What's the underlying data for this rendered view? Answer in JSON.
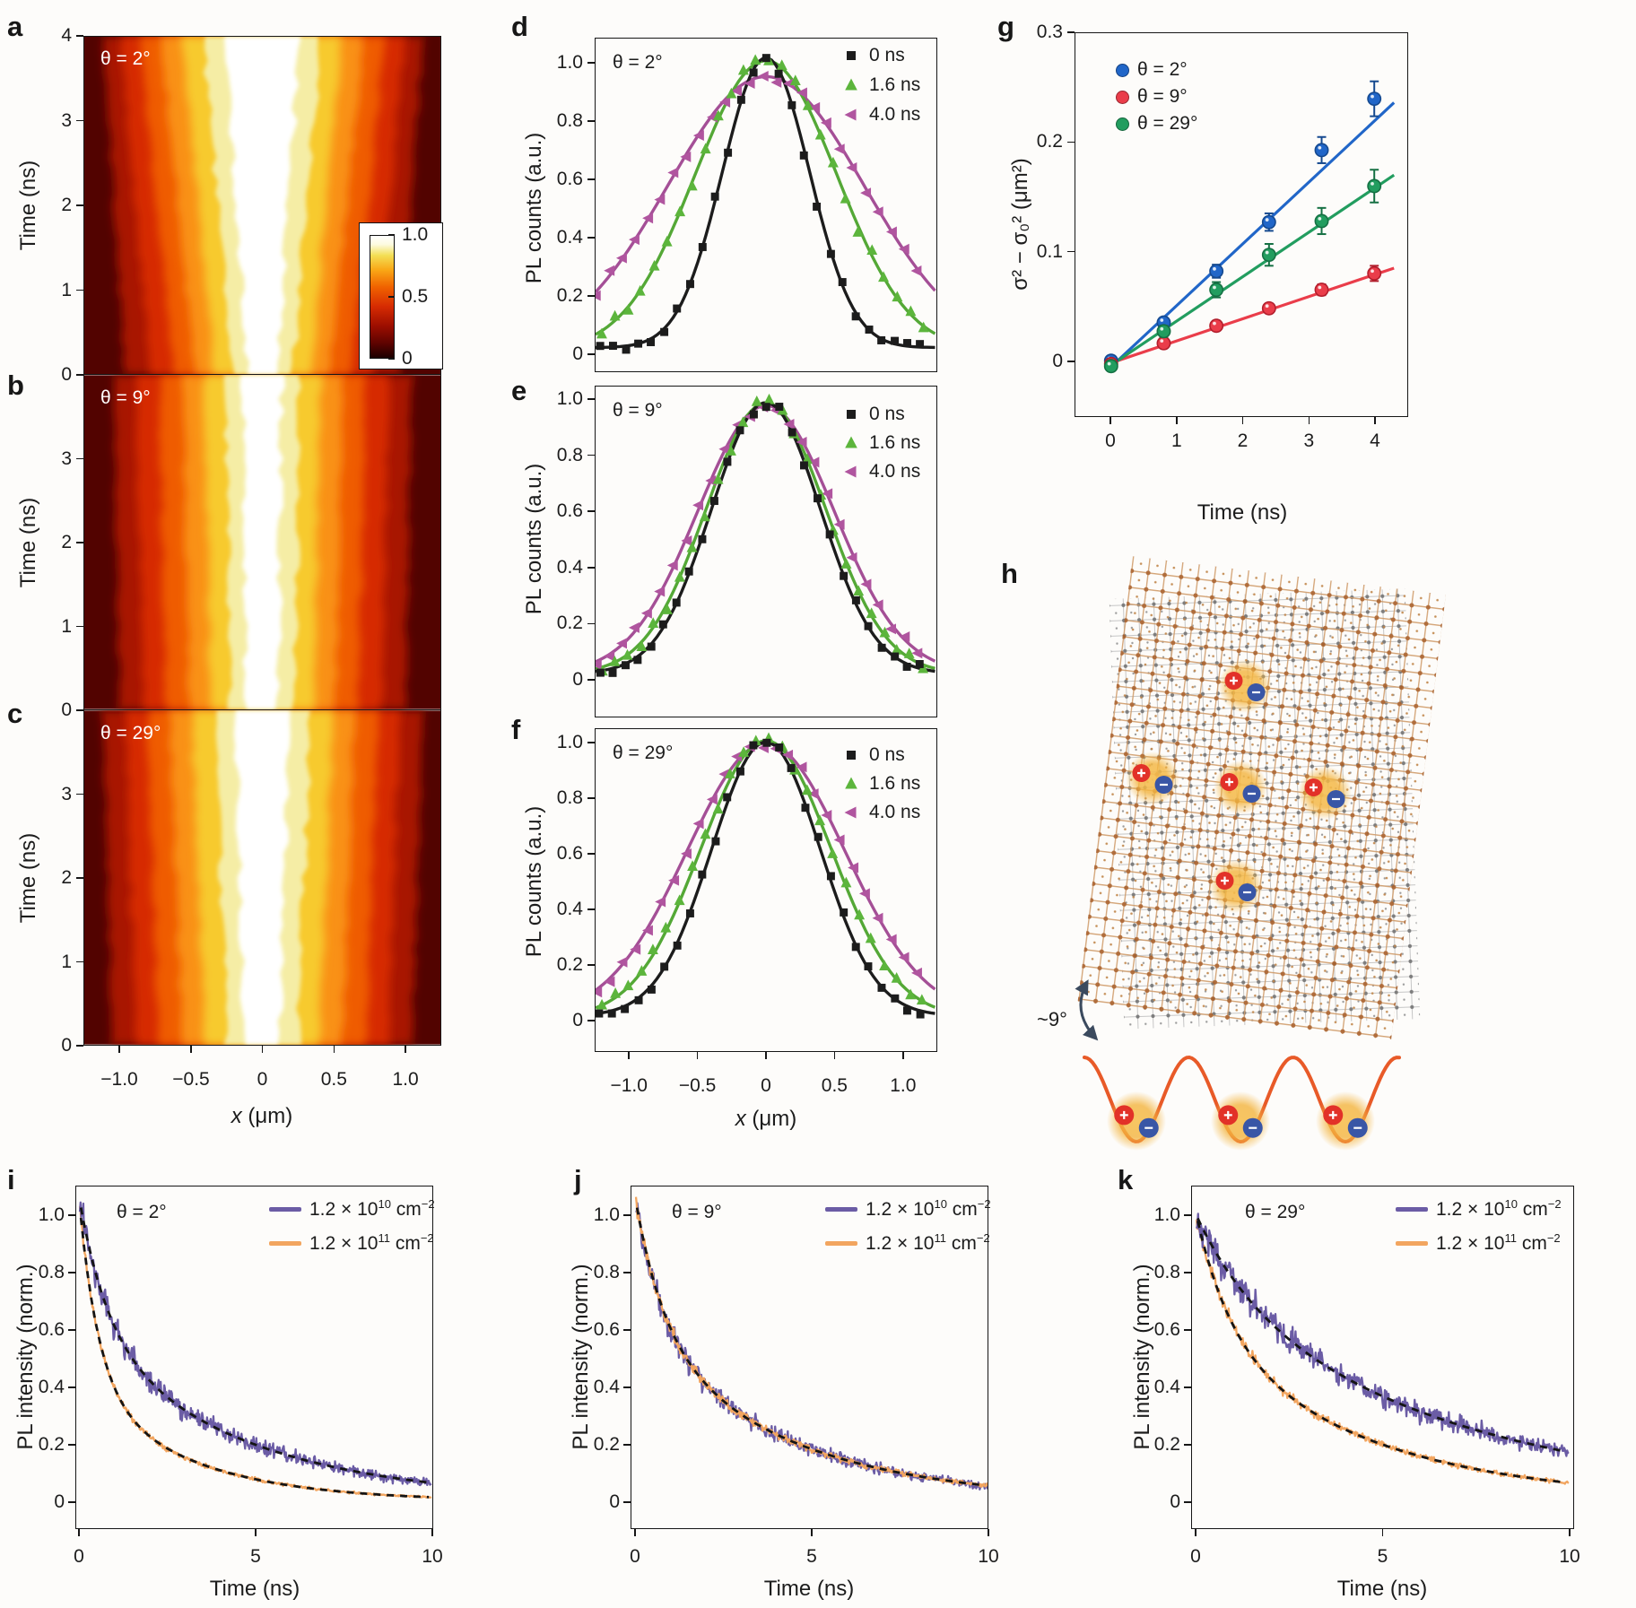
{
  "figure": {
    "panels": {
      "a": {
        "letter": "a",
        "theta": "θ = 2°",
        "ylabel": "Time (ns)",
        "yticks": [
          "4",
          "3",
          "2",
          "1",
          "0"
        ]
      },
      "b": {
        "letter": "b",
        "theta": "θ = 9°",
        "ylabel": "Time (ns)",
        "yticks": [
          "3",
          "2",
          "1",
          "0"
        ]
      },
      "c": {
        "letter": "c",
        "theta": "θ = 29°",
        "ylabel": "Time (ns)",
        "yticks": [
          "3",
          "2",
          "1",
          "0"
        ],
        "xticks": [
          "−1.0",
          "−0.5",
          "0",
          "0.5",
          "1.0"
        ],
        "xlabel_var": "x",
        "xlabel_rest": " (μm)"
      },
      "colorbar": {
        "ticks": [
          "1.0",
          "0.5",
          "0"
        ]
      },
      "d": {
        "letter": "d",
        "theta": "θ = 2°",
        "ylabel": "PL counts (a.u.)",
        "yticks": [
          "1.0",
          "0.8",
          "0.6",
          "0.4",
          "0.2",
          "0"
        ]
      },
      "e": {
        "letter": "e",
        "theta": "θ = 9°",
        "ylabel": "PL counts (a.u.)",
        "yticks": [
          "1.0",
          "0.8",
          "0.6",
          "0.4",
          "0.2",
          "0"
        ]
      },
      "f": {
        "letter": "f",
        "theta": "θ = 29°",
        "ylabel": "PL counts (a.u.)",
        "yticks": [
          "1.0",
          "0.8",
          "0.6",
          "0.4",
          "0.2",
          "0"
        ],
        "xticks": [
          "−1.0",
          "−0.5",
          "0",
          "0.5",
          "1.0"
        ],
        "xlabel_var": "x",
        "xlabel_rest": " (μm)"
      },
      "profile_legend": [
        {
          "label": "0 ns",
          "marker": "square",
          "color": "#1c1c1c"
        },
        {
          "label": "1.6 ns",
          "marker": "triangle-up",
          "color": "#5cb53c"
        },
        {
          "label": "4.0 ns",
          "marker": "triangle-left",
          "color": "#b0559f"
        }
      ],
      "g": {
        "letter": "g",
        "ylabel": "σ² − σ₀² (μm²)",
        "yticks": [
          "0.3",
          "0.2",
          "0.1",
          "0"
        ],
        "xticks": [
          "0",
          "1",
          "2",
          "3",
          "4"
        ],
        "xlabel": "Time (ns)",
        "legend": [
          {
            "label": "θ = 2°",
            "color": "#2166c8"
          },
          {
            "label": "θ = 9°",
            "color": "#ea3d4a"
          },
          {
            "label": "θ = 29°",
            "color": "#229d5f"
          }
        ]
      },
      "h": {
        "letter": "h",
        "angle_label": "~9°"
      },
      "i": {
        "letter": "i",
        "theta": "θ = 2°",
        "ylabel": "PL intensity (norm.)",
        "yticks": [
          "1.0",
          "0.8",
          "0.6",
          "0.4",
          "0.2",
          "0"
        ],
        "xticks": [
          "0",
          "5",
          "10"
        ],
        "xlabel": "Time (ns)"
      },
      "j": {
        "letter": "j",
        "theta": "θ = 9°",
        "ylabel": "PL intensity (norm.)",
        "yticks": [
          "1.0",
          "0.8",
          "0.6",
          "0.4",
          "0.2",
          "0"
        ],
        "xticks": [
          "0",
          "5",
          "10"
        ],
        "xlabel": "Time (ns)"
      },
      "k": {
        "letter": "k",
        "theta": "θ = 29°",
        "ylabel": "PL intensity (norm.)",
        "yticks": [
          "1.0",
          "0.8",
          "0.6",
          "0.4",
          "0.2",
          "0"
        ],
        "xticks": [
          "0",
          "5",
          "10"
        ],
        "xlabel": "Time (ns)"
      },
      "density_legend": [
        {
          "base": "1.2 × 10",
          "exp": "10",
          "unit": " cm",
          "unit_exp": "−2",
          "color": "#6b5ca5"
        },
        {
          "base": "1.2 × 10",
          "exp": "11",
          "unit": " cm",
          "unit_exp": "−2",
          "color": "#f2a55f"
        }
      ]
    }
  },
  "chart_data": [
    {
      "panel": "a",
      "type": "heatmap",
      "title": "θ = 2°",
      "xlabel": "x (μm)",
      "ylabel": "Time (ns)",
      "x_range": [
        -1.25,
        1.25
      ],
      "y_range": [
        0,
        4
      ],
      "colorbar_ticks": [
        0,
        0.5,
        1.0
      ],
      "colormap": [
        "#350000",
        "#700600",
        "#a81200",
        "#d62b02",
        "#ef5c00",
        "#f99114",
        "#f7ca2e",
        "#f5eda5",
        "#ffffff"
      ],
      "core_halfwidth_um": {
        "t0": 0.1,
        "t4": 0.26
      },
      "description": "Normalized PL vs position and time; bright core broadens strongly with time"
    },
    {
      "panel": "b",
      "type": "heatmap",
      "title": "θ = 9°",
      "xlabel": "x (μm)",
      "ylabel": "Time (ns)",
      "x_range": [
        -1.25,
        1.25
      ],
      "y_range": [
        0,
        4
      ],
      "core_halfwidth_um": {
        "t0": 0.11,
        "t4": 0.14
      },
      "description": "Bright core broadens weakly with time"
    },
    {
      "panel": "c",
      "type": "heatmap",
      "title": "θ = 29°",
      "xlabel": "x (μm)",
      "ylabel": "Time (ns)",
      "x_range": [
        -1.25,
        1.25
      ],
      "y_range": [
        0,
        4
      ],
      "core_halfwidth_um": {
        "t0": 0.12,
        "t4": 0.19
      },
      "description": "Bright core broadens moderately with time"
    },
    {
      "panel": "d",
      "type": "line+scatter",
      "title": "θ = 2°",
      "xlabel": "x (μm)",
      "ylabel": "PL counts (a.u.)",
      "xlim": [
        -1.25,
        1.25
      ],
      "ylim": [
        0,
        1.05
      ],
      "series": [
        {
          "name": "0 ns",
          "gaussian_sigma_um": 0.32,
          "peak": 1.0
        },
        {
          "name": "1.6 ns",
          "gaussian_sigma_um": 0.52,
          "peak": 1.0
        },
        {
          "name": "4.0 ns",
          "gaussian_sigma_um": 0.72,
          "peak": 0.955
        }
      ]
    },
    {
      "panel": "e",
      "type": "line+scatter",
      "title": "θ = 9°",
      "xlabel": "x (μm)",
      "ylabel": "PL counts (a.u.)",
      "xlim": [
        -1.25,
        1.25
      ],
      "ylim": [
        0,
        1.05
      ],
      "series": [
        {
          "name": "0 ns",
          "gaussian_sigma_um": 0.4,
          "peak": 0.97
        },
        {
          "name": "1.6 ns",
          "gaussian_sigma_um": 0.44,
          "peak": 0.97
        },
        {
          "name": "4.0 ns",
          "gaussian_sigma_um": 0.5,
          "peak": 0.96
        }
      ]
    },
    {
      "panel": "f",
      "type": "line+scatter",
      "title": "θ = 29°",
      "xlabel": "x (μm)",
      "ylabel": "PL counts (a.u.)",
      "xlim": [
        -1.25,
        1.25
      ],
      "ylim": [
        0,
        1.05
      ],
      "series": [
        {
          "name": "0 ns",
          "gaussian_sigma_um": 0.4,
          "peak": 0.99
        },
        {
          "name": "1.6 ns",
          "gaussian_sigma_um": 0.48,
          "peak": 1.0
        },
        {
          "name": "4.0 ns",
          "gaussian_sigma_um": 0.58,
          "peak": 0.99
        }
      ]
    },
    {
      "panel": "g",
      "type": "scatter",
      "xlabel": "Time (ns)",
      "ylabel": "σ² − σ₀² (μm²)",
      "xlim": [
        -0.45,
        4.5
      ],
      "ylim": [
        -0.05,
        0.3
      ],
      "x": [
        0,
        0.8,
        1.6,
        2.4,
        3.2,
        4.0
      ],
      "series": [
        {
          "name": "θ = 2°",
          "color": "#2166c8",
          "y": [
            0.0,
            0.035,
            0.082,
            0.127,
            0.193,
            0.24
          ],
          "yerr": [
            0.004,
            0.004,
            0.006,
            0.008,
            0.012,
            0.016
          ],
          "fit_slope_um2_per_ns": 0.0563
        },
        {
          "name": "θ = 9°",
          "color": "#ea3d4a",
          "y": [
            -0.003,
            0.016,
            0.032,
            0.048,
            0.065,
            0.08
          ],
          "yerr": [
            0.003,
            0.003,
            0.004,
            0.004,
            0.005,
            0.007
          ],
          "fit_slope_um2_per_ns": 0.0202
        },
        {
          "name": "θ = 29°",
          "color": "#229d5f",
          "y": [
            -0.005,
            0.027,
            0.065,
            0.097,
            0.128,
            0.16
          ],
          "yerr": [
            0.004,
            0.005,
            0.007,
            0.01,
            0.012,
            0.015
          ],
          "fit_slope_um2_per_ns": 0.0405
        }
      ],
      "legend_position": "upper left"
    },
    {
      "panel": "h",
      "type": "illustration",
      "angle_label": "~9°",
      "description": "Two square atomic lattices twisted by ~9° forming a moiré pattern with five trapped interlayer excitons (red + / blue − pairs in yellow clouds); below, a periodic moiré potential (orange sine) hosting three excitons in adjacent minima"
    },
    {
      "panel": "i",
      "type": "line",
      "title": "θ = 2°",
      "xlabel": "Time (ns)",
      "ylabel": "PL intensity (norm.)",
      "xlim": [
        0,
        10
      ],
      "ylim": [
        0,
        1.08
      ],
      "series": [
        {
          "name": "1.2 × 10^10 cm^-2",
          "color": "#6b5ca5",
          "biexp": {
            "a1": 0.45,
            "tau1_ns": 0.8,
            "a2": 0.6,
            "tau2_ns": 4.5
          }
        },
        {
          "name": "1.2 × 10^11 cm^-2",
          "color": "#f2a55f",
          "biexp": {
            "a1": 0.62,
            "tau1_ns": 0.55,
            "a2": 0.41,
            "tau2_ns": 3.0
          }
        }
      ],
      "fit": "black dashed biexponential on both curves"
    },
    {
      "panel": "j",
      "type": "line",
      "title": "θ = 9°",
      "xlabel": "Time (ns)",
      "ylabel": "PL intensity (norm.)",
      "xlim": [
        0,
        10
      ],
      "ylim": [
        0,
        1.08
      ],
      "series": [
        {
          "name": "1.2 × 10^10 cm^-2",
          "color": "#6b5ca5",
          "biexp": {
            "a1": 0.45,
            "tau1_ns": 0.8,
            "a2": 0.6,
            "tau2_ns": 4.2
          }
        },
        {
          "name": "1.2 × 10^11 cm^-2",
          "color": "#f2a55f",
          "biexp": {
            "a1": 0.45,
            "tau1_ns": 0.8,
            "a2": 0.6,
            "tau2_ns": 4.2
          }
        }
      ],
      "fit": "single black dashed biexponential (curves overlap)"
    },
    {
      "panel": "k",
      "type": "line",
      "title": "θ = 29°",
      "xlabel": "Time (ns)",
      "ylabel": "PL intensity (norm.)",
      "xlim": [
        0,
        10
      ],
      "ylim": [
        0,
        1.08
      ],
      "series": [
        {
          "name": "1.2 × 10^10 cm^-2",
          "color": "#6b5ca5",
          "biexp": {
            "a1": 0.25,
            "tau1_ns": 1.5,
            "a2": 0.75,
            "tau2_ns": 6.8
          }
        },
        {
          "name": "1.2 × 10^11 cm^-2",
          "color": "#f2a55f",
          "biexp": {
            "a1": 0.4,
            "tau1_ns": 0.9,
            "a2": 0.6,
            "tau2_ns": 4.5
          }
        }
      ],
      "fit": "black dashed biexponential on both curves"
    }
  ]
}
